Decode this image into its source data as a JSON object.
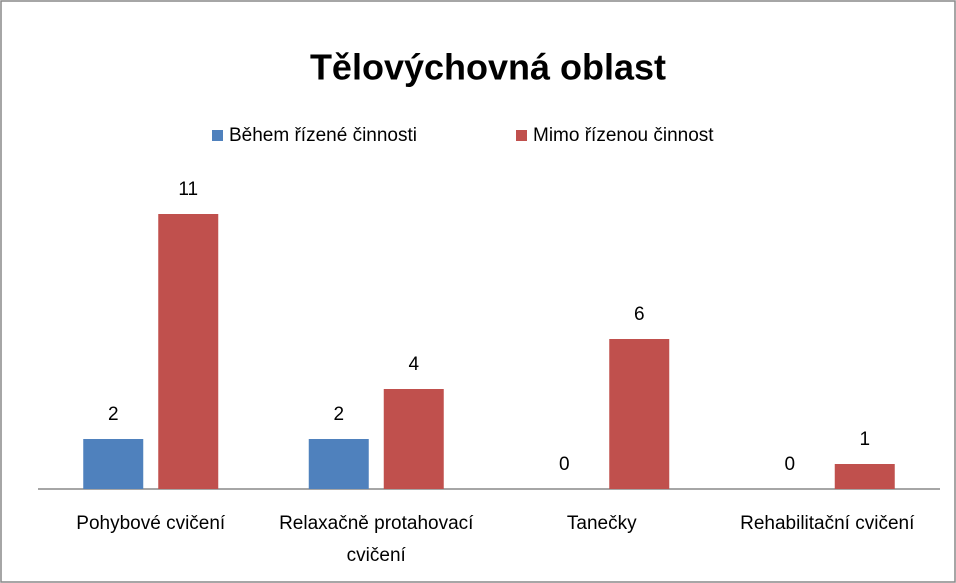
{
  "chart_data": {
    "type": "bar",
    "title": "Tělovýchovná oblast",
    "categories": [
      "Pohybové cvičení",
      "Relaxačně protahovací cvičení",
      "Tanečky",
      "Rehabilitační cvičení"
    ],
    "series": [
      {
        "name": "Během řízené činnosti",
        "color": "#4f81bd",
        "values": [
          2,
          2,
          0,
          0
        ]
      },
      {
        "name": "Mimo řízenou činnost",
        "color": "#c0504d",
        "values": [
          11,
          4,
          6,
          1
        ]
      }
    ],
    "legend": "top"
  }
}
